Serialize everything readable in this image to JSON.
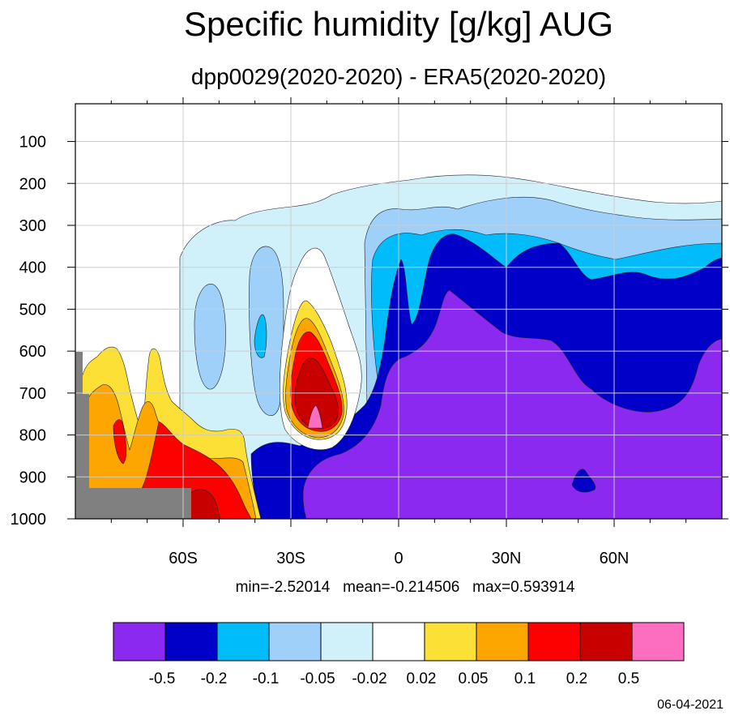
{
  "chart_data": {
    "type": "contour",
    "title": "Specific humidity [g/kg] AUG",
    "subtitle": "dpp0029(2020-2020) - ERA5(2020-2020)",
    "x_ticks": [
      {
        "value": -60,
        "label": "60S"
      },
      {
        "value": -30,
        "label": "30S"
      },
      {
        "value": 0,
        "label": "0"
      },
      {
        "value": 30,
        "label": "30N"
      },
      {
        "value": 60,
        "label": "60N"
      }
    ],
    "y_ticks": [
      100,
      200,
      300,
      400,
      500,
      600,
      700,
      800,
      900,
      1000
    ],
    "xlim": [
      -90,
      90
    ],
    "ylim": [
      1000,
      10
    ],
    "grid": true,
    "stats": "min=-2.52014   mean=-0.214506   max=0.593914",
    "colorbar": {
      "colors": [
        "#8b29f0",
        "#0000c9",
        "#00bcfa",
        "#9fd0fa",
        "#d0f0fa",
        "#ffffff",
        "#fde036",
        "#fda500",
        "#fd0000",
        "#c80000",
        "#fe6ec0"
      ],
      "labels": [
        "-0.5",
        "-0.2",
        "-0.1",
        "-0.05",
        "-0.02",
        "0.02",
        "0.05",
        "0.1",
        "0.2",
        "0.5"
      ]
    },
    "date": "06-04-2021"
  }
}
